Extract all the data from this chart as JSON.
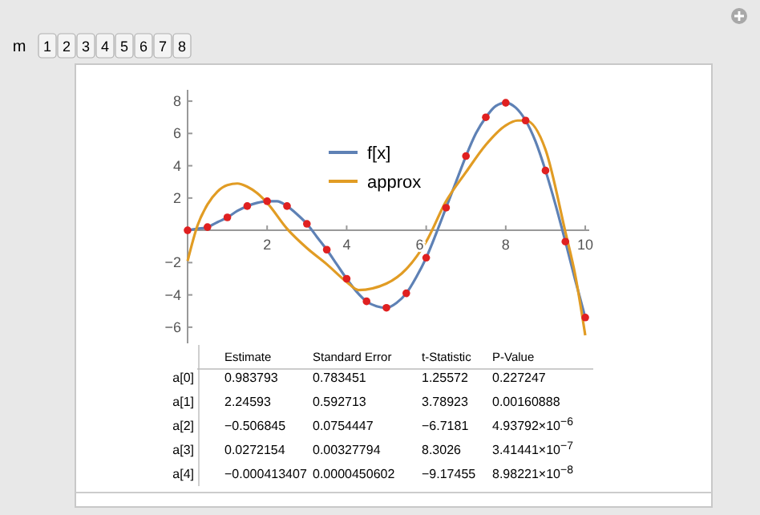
{
  "chart_data": {
    "type": "line",
    "xlim": [
      0,
      10.1
    ],
    "ylim": [
      -7,
      8.7
    ],
    "xticks": [
      2,
      4,
      6,
      8,
      10
    ],
    "yticks": [
      -6,
      -4,
      -2,
      2,
      4,
      6,
      8
    ],
    "grid": false,
    "legend": "top",
    "line_style": "solid",
    "series": [
      {
        "name": "f[x]",
        "color": "#5e81b5",
        "x": [
          0,
          0.25,
          0.5,
          0.75,
          1,
          1.25,
          1.5,
          1.75,
          2,
          2.25,
          2.5,
          2.75,
          3,
          3.25,
          3.5,
          3.75,
          4,
          4.25,
          4.5,
          4.75,
          5,
          5.25,
          5.5,
          5.75,
          6,
          6.25,
          6.5,
          6.75,
          7,
          7.25,
          7.5,
          7.75,
          8,
          8.25,
          8.5,
          8.75,
          9,
          9.25,
          9.5,
          9.75,
          10
        ],
        "values": [
          0,
          0.1,
          0.2,
          0.5,
          0.8,
          1.2,
          1.5,
          1.7,
          1.8,
          1.8,
          1.5,
          1,
          0.4,
          -0.4,
          -1.2,
          -2.1,
          -3,
          -3.8,
          -4.4,
          -4.7,
          -4.8,
          -4.5,
          -3.9,
          -2.9,
          -1.7,
          -0.2,
          1.4,
          3,
          4.6,
          6,
          7,
          7.7,
          7.9,
          7.6,
          6.8,
          5.5,
          3.7,
          1.6,
          -0.7,
          -3.1,
          -5.4
        ]
      },
      {
        "name": "approx",
        "color": "#e19c24",
        "x": [
          0,
          0.25,
          0.5,
          0.75,
          1,
          1.25,
          1.5,
          1.75,
          2,
          2.5,
          3,
          3.5,
          4,
          4.3,
          5,
          5.5,
          6,
          6.5,
          7,
          7.5,
          8,
          8.3,
          8.5,
          9,
          9.5,
          9.75,
          10
        ],
        "values": [
          -1.9,
          0.3,
          1.6,
          2.4,
          2.8,
          2.9,
          2.7,
          2.3,
          1.7,
          0.1,
          -1.1,
          -2.1,
          -3.2,
          -3.7,
          -3.3,
          -2.4,
          -0.7,
          1.8,
          3.6,
          5.3,
          6.5,
          6.8,
          6.8,
          5,
          -0.1,
          -2.8,
          -6.5
        ]
      },
      {
        "type": "scatter",
        "marker": "circle",
        "color": "#e02020",
        "x": [
          0,
          0.5,
          1,
          1.5,
          2,
          2.5,
          3,
          3.5,
          4,
          4.5,
          5,
          5.5,
          6,
          6.5,
          7,
          7.5,
          8,
          8.5,
          9,
          9.5,
          10
        ],
        "values": [
          0,
          0.2,
          0.8,
          1.5,
          1.8,
          1.5,
          0.4,
          -1.2,
          -3,
          -4.4,
          -4.8,
          -3.9,
          -1.7,
          1.4,
          4.6,
          7,
          7.9,
          6.8,
          3.7,
          -0.7,
          -5.4
        ]
      }
    ],
    "annotations": [
      "m",
      "1",
      "2",
      "3",
      "4",
      "5",
      "6",
      "7",
      "8",
      "Estimate",
      "Standard Error",
      "t-Statistic",
      "P-Value",
      "a[0]",
      "0.983793",
      "0.783451",
      "1.25572",
      "0.227247",
      "a[1]",
      "2.24593",
      "0.592713",
      "3.78923",
      "0.00160888",
      "a[2]",
      "−0.506845",
      "0.0754447",
      "−6.7181",
      "4.93792×10$^{−6}$",
      "a[3]",
      "0.0272154",
      "0.00327794",
      "8.3026",
      "3.41441×10$^{−7}$",
      "a[4]",
      "−0.000413407",
      "0.0000450602",
      "−9.17455",
      "8.98221×10$^{−8}$"
    ]
  }
}
